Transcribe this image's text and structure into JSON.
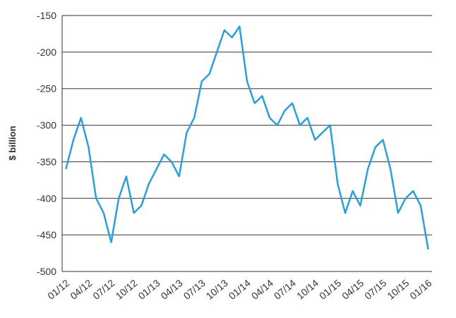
{
  "chart_data": {
    "type": "line",
    "y_label": "$ billion",
    "x": [
      "01/12",
      null,
      null,
      "04/12",
      null,
      null,
      "07/12",
      null,
      null,
      "10/12",
      null,
      null,
      "01/13",
      null,
      null,
      "04/13",
      null,
      null,
      "07/13",
      null,
      null,
      "10/13",
      null,
      null,
      "01/14",
      null,
      null,
      "04/14",
      null,
      null,
      "07/14",
      null,
      null,
      "10/14",
      null,
      null,
      "01/15",
      null,
      null,
      "04/15",
      null,
      null,
      "07/15",
      null,
      null,
      "10/15",
      null,
      null,
      "01/16"
    ],
    "series": [
      {
        "color": "#2a9fd8",
        "values": [
          -360,
          -320,
          -290,
          -330,
          -400,
          -420,
          -460,
          -400,
          -370,
          -420,
          -410,
          -380,
          -360,
          -340,
          -350,
          -370,
          -310,
          -290,
          -240,
          -230,
          -200,
          -170,
          -180,
          -165,
          -240,
          -270,
          -260,
          -290,
          -300,
          -280,
          -270,
          -300,
          -290,
          -320,
          -310,
          -300,
          -380,
          -420,
          -390,
          -410,
          -360,
          -330,
          -320,
          -360,
          -420,
          -400,
          -390,
          -410,
          -470
        ]
      }
    ],
    "ylim": [
      -500,
      -150
    ],
    "yticks": [
      -500,
      -450,
      -400,
      -350,
      -300,
      -250,
      -200,
      -150
    ],
    "grid": true
  }
}
